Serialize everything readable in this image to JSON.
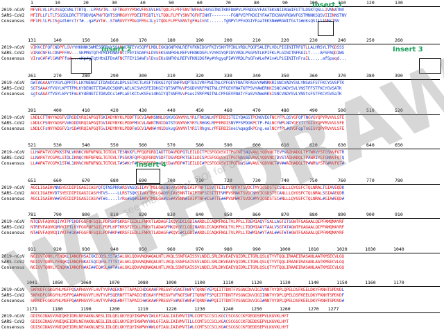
{
  "labels": [
    "2019-nCoV",
    "SARS-CoV2",
    "Consensus"
  ],
  "blocks": [
    {
      "nums": [
        "1",
        "10",
        "20",
        "30",
        "40",
        "50",
        "60",
        "70",
        "80",
        "90",
        "100",
        "110",
        "120",
        "130"
      ],
      "rows": [
        "MFVFLVLLPLVSSQCVNLTTRTQ--LPPAYTN--SFTRGVYYPDKVFRSSVLHSTQDLFLPFFSNVTWFHAIHVSGTNGTKRFDNPVLPFNDGVYFASTEKSNIIRGWIFGTTLDSKTQSLLIVNNATNV",
        "MFIFLLFLTLTSGSDLDRCTTFDDVQAPNYTQHTSSMRGVYYPDEIFRSDTLYLTQDLFLPFYSNVTGFHTINHT--------FGNPVIPFKDGIYFAATEKSNVVRGWVFGSTMNNKSQSVIIINNSTNV",
        "MF1FLlLPLt5gsdl#rcTrf#..qaPaYT#..SfmRGVYYPDe1FRSs1Ly1TQDLFLPF%SNVTgFHaInht......fgNPVlPFnDGIYFaaTEKSN##RGWIfGsT1#nKsQS1ll1NNsTNV"
      ]
    },
    {
      "nums": [
        "131",
        "140",
        "150",
        "160",
        "170",
        "180",
        "190",
        "200",
        "210",
        "220",
        "230",
        "240",
        "250",
        "260"
      ],
      "rows": [
        "VIKVCEFQFCNDPFLGVYYHKNNKSWMESEFRVYSSANNCTFEYVSQPFLMDLEGKQGNFKNLREFVFKNIDGYFKIYSKHTPINLVRDLPQGFSALEPLVDLPIGINITRFQTLLALHRSYLTPGDSSS",
        "VIRACNFELCDNPFFAV---SKPMGTQTHTMIFDNAFNCTFEYISDAFSLDVSEKSGNFKHLREFVFKNKDGFLYVYKGYQPIDVVRDLPSGFNTLKPIFKLPLGINITNFRAILT----AFSPAQDIWG",
        "VIraC#F#lC#NPFfa#...sKp#gTqtHtmIFDnAFNCTFEYiS#aFslDvsEKsGNFKhLREFVFKN1DGf#y#YkgyqPI#VVRDLPsGFn#LeP#1v#LPiGINITnFraIL.....afSpaqd..."
      ]
    },
    {
      "nums": [
        "261",
        "270",
        "280",
        "290",
        "300",
        "310",
        "320",
        "330",
        "340",
        "350",
        "360",
        "370",
        "380",
        "390"
      ],
      "rows": [
        "GWTAGAAAYYVGYLQPRTFLLKYNENGTITDAVDCALDPLSETKCTLKSFTVEKGIYQTSNFRVQPTESIVRFPNITNLCPFGEVFNATRFASVYAWNRKRISNCVADYSVLYNSASFSTFKCYGVSPTK",
        "SGTSAAAYFVGYLKPTTFMLKYDENGTITDAVDCSQNPLAELKCSVKSFEIDKGIYQTSNFRVVPSGDVVRFPNITNLCPFGEVFNATKFPSVYAWERKKISNCVADYSVLYNSTFFSTFKCYGVSATK",
        "sgtsAAAYfVGYLkPrtFmLKYdENGTITDAVDCsl#PLaElKCtvKSFeidKGIYQTSNFRVvPsesIVRFPNITNLCPFGEVFNATrFaSVYAWeRKkISNCVADYSVLYNStsFSTFKCYGVSaTK"
      ]
    },
    {
      "nums": [
        "391",
        "400",
        "410",
        "420",
        "430",
        "440",
        "450",
        "460",
        "470",
        "480",
        "490",
        "500",
        "510",
        "520"
      ],
      "rows": [
        "LNDLCFTNVYADSFVIRGDEVRQIAPGQTGKIADYNYKLPDDFTGCVIAWNSNNLDSKVGGNYNYLYRLFRKSNLKPFERDISTEIYQAGSTPCNGVEGFNCYFPLQSYGFQPTNGVGYQPYRVVVLSFE",
        "LNDLCFSNVYADSFVVKGDDVRQIAPGQTGVIADYNYKLPDDFMGCVLAWNTRNIDATSTGNYNYKYRYLRHGKLRPFERDISNVPFSPDGKPCTP-PALNCYWPLNDYGFYTTTGIGYQPYRVVVLSFE",
        "LNDLCFsNVYADSFV1rGD#VRQIAPGQTGvIADYNYKLPDDFmGCV1AWN#rN1DskvgGNYNYlYR1lRhgnLrPFERDISnei%qagdkPCng.ealNCYfPL#dYGFqpTnGIGYQPYRVVVLSFE"
      ]
    },
    {
      "nums": [
        "521",
        "530",
        "540",
        "550",
        "560",
        "570",
        "580",
        "590",
        "600",
        "610",
        "620",
        "630",
        "640",
        "650"
      ],
      "rows": [
        "LLHAPATVCGPKKSTNLVKNKCVNFNFNGLTGTGVLTESNKKFLPFQQFGRDIADTTDAVRDPQTLEILDITPCSFGGVSVITPGTNTSNQVAVLYQDVNCTEVPVAIHADQLTPTWRVYSTGSNVFQTR",
        "LLNAPATVCGPKLSTDLIKNQCVNFNFNGLTGTGVLTPSSKRFQPFQQFGRDVSDFTDSVRDPKTSEILDISPCSFGGVSVITPGTNASSEVAVLYQDVNCTDVSTAIHADQLTPAWRIYSTGNNVFQTQ",
        "LL#APATVCGPK1ST#L1KN%CVNFNFNGLTGTGVLT#S#KrF#PFQQFGRDvaDttDaVRDP#T1EILDI#PCSFGGVSVITPGTNaSs#VAVLYQDVNCT#V##AIHADQLTP#WR%YSTG#NVFQT#"
      ]
    },
    {
      "nums": [
        "651",
        "660",
        "670",
        "680",
        "690",
        "700",
        "710",
        "720",
        "730",
        "740",
        "750",
        "760",
        "770",
        "780"
      ],
      "rows": [
        "AGCLIGAEHVNNSYECDIPIGAGICASYQTQTNSPRRARSVASQSIIAYTMSLGAENSVAYSNNSIAIPTNFTISVTTEILPVSMTKTSVDCTMYICGDSTECSNLLLQYGSFCTQLNRALTGIAVEQDK",
        "AGCLIGAEHVDTSYECDIPIGAGICASYHTVS----LLRSTSQKSIVAYTMSLGADSSIAYSNNTIAIPTNFSISITTEVMPVSMAKTSVDCNMYICGDSTECANLLLQYGSFCTQLNRALSGIAAEQDR",
        "AGCLIGAEHV##SYECDIPIGAGICASY#T#s....lrRs#SQ#SI#AYTMSLGA#sS#AYSNN#IAIPTNF#IS#TTE##PVSM#KTSVDC#MYICGDSTEC#NLLLQYGSFCTQLNRAL#GIA#EQD#"
      ]
    },
    {
      "nums": [
        "781",
        "790",
        "800",
        "810",
        "820",
        "830",
        "840",
        "850",
        "860",
        "870",
        "880",
        "890",
        "900",
        "910"
      ],
      "rows": [
        "NTQEVFAQVKQIYKTPPIKDFGGFNFSQILPDPSKPSKRSFIEDLLFNKVTLADAGFIKQYGDCLGDIAARDLICAQKFNGLTVLPPLLTDEMIAQYTSALLAGTITSGWTFGAGAALQIPFAMQMAYRF",
        "NTREVFAQVKQMYKTPTLKYFGGFNFSQILPDPLKPTKRSFIEDLLFNKVTLADAGFMKQYGECLGDINARDLICAQKFNGLTVLPPLLTDDMIAAYTAALVSGTATAGWTFGAGAALQIPFAMQMAYRF",
        "NT#EVFAQVKQ1YKTP#1K#FGGFNFSQILPDP#KP#KRSFIEDLLFNKVTLADAGF#KQYG#CLGDI#ARDLICAQKFNGLTVLPPLLTD#MIA#YT#AL##GT#T#GWTFGAGAALQIPFAMQMAYRF"
      ]
    },
    {
      "nums": [
        "911",
        "920",
        "930",
        "940",
        "950",
        "960",
        "970",
        "980",
        "990",
        "1000",
        "1010",
        "1020",
        "1030",
        "1040"
      ],
      "rows": [
        "NGIGVTQNVLYENQKLIANQFNSAIGKIQDSLSSTASALGKLQDVVNQNAQALNTLVKQLSSNFGAISSVLNDILSRLDKVEAEVQIDRLITGRLQSLQTYVTQQLIRAAEIRASANLAATKMSECVLGQ",
        "NGIGVTQNVLYENQKQIANQFNKAISQIQESLTTTSTALGKLQDVVNQNAQALNTLVKQLSSNFGAISSVLNDILSRLDKVEAEVQIDRLITGRLQSLQTYVTQQLIRAAEIRASANLAATKMSECVLGQ",
        "NGIGVTQNVLYENQK#IANQFN#AI##IQ#SL##T#sALGKLQDVVNQNAQALNTLVKQLSSNFGAISSVLNDILSRLDKVEAEVQIDRLITGRLQSLQTYVTQQLIRAAEIRASANLAATKMSECVLGQ"
      ]
    },
    {
      "nums": [
        "1041",
        "1050",
        "1060",
        "1070",
        "1080",
        "1090",
        "1100",
        "1110",
        "1120",
        "1130",
        "1140",
        "1150",
        "1160",
        "1170"
      ],
      "rows": [
        "SKRVDFCGKGYHLMSFPQSAPHGVVFLHVTYVPAQEKNFTTAPAICHDGKAHFPREGVFVSNGTHWFVTQRNFYEPQIITTDNTFVSGNCDVVIGIVNNTVYDPLQPELDSFKEELDKYFKNHTSPDVDL",
        "SKRVDFCGKGYHLMSFPQAAPHGVVFLHVTYVPSQERNFTTAPAICHEGKAYFPREGVFVFNGTSWFITQRNFFSPQIITTDNTFVSGNCDVVIGIINNTVYDPLQPELDSFKEELDKYFKNHTSPDVDF",
        "SKRVDFCGKGYHLMSFPQ#APHGVVFLHVTYVP#QE#NFTTAPAICH#GKA#FPREGVFV#NGT#WF#TQRNF##PQIITTDNTFVSGNCDVVIGI#NNTVYDPLQPELDSFKEELDKYFKNHTSPDVD#"
      ]
    },
    {
      "nums": [
        "1171",
        "1180",
        "1190",
        "1200",
        "1210",
        "1220",
        "1230",
        "1240",
        "1250",
        "1260",
        "1270",
        "1277"
      ],
      "rows": [
        "GDISGINASVVNIQKEIDRLNEVAKNLNESLIDLQELGKYEQYIKWPWYIWLGFIAGLIAIVMVTIMLCCMTSCCSCLKGCCSCGSCCKFDEDDSEPVLKGVKLHYT",
        "GDISGINASVVNIQKEIDRLNEVAKNLNESLIDLQELGKYEQYIKWPWYVWLGFIAGLIAIVMVTILLCCMTSCCSCLKGACSCGSCCKFDEDDSEPVLKGVKLHYT",
        "GDISGINASVVNIQKEIDRLNEVAKNLNESLIDLQELGKYEQYIKWPWY#WLGFIAGLIAIVMVTI#LCCMTSCCSCLKG#CSCGSCCKFDEDDSEPVLKGVKLHYT"
      ]
    }
  ],
  "inserts": [
    {
      "label": "Insert 1"
    },
    {
      "label": "Insert 2"
    },
    {
      "label": "Insert 3"
    },
    {
      "label": "Insert 4"
    }
  ],
  "watermarks": [
    "WITHDRAWN",
    "see manuscript DOI for details"
  ],
  "colors": {
    "identical": "#e8141c",
    "different": "#1d3fd8",
    "insert_label": "#1aa05a"
  }
}
